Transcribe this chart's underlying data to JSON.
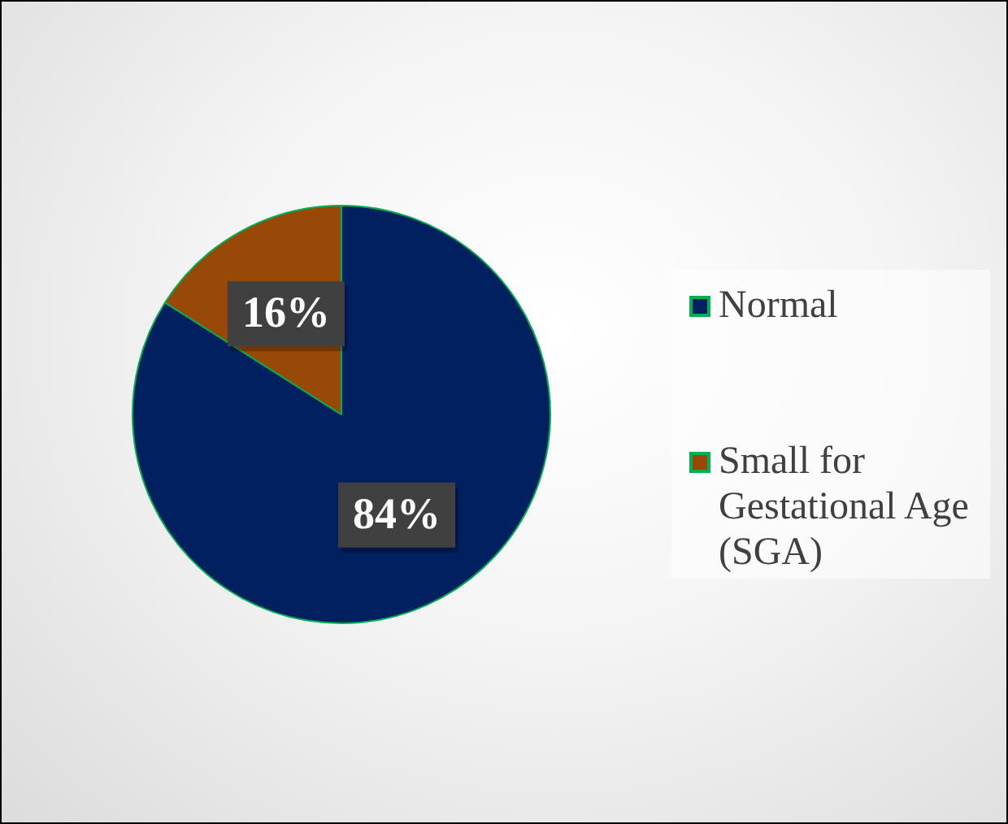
{
  "chart_data": {
    "type": "pie",
    "categories": [
      "Normal",
      "Small for Gestational Age (SGA)"
    ],
    "values": [
      84,
      16
    ],
    "colors": [
      "#002060",
      "#984807"
    ],
    "value_labels": [
      "84%",
      "16%"
    ],
    "legend": "right"
  }
}
